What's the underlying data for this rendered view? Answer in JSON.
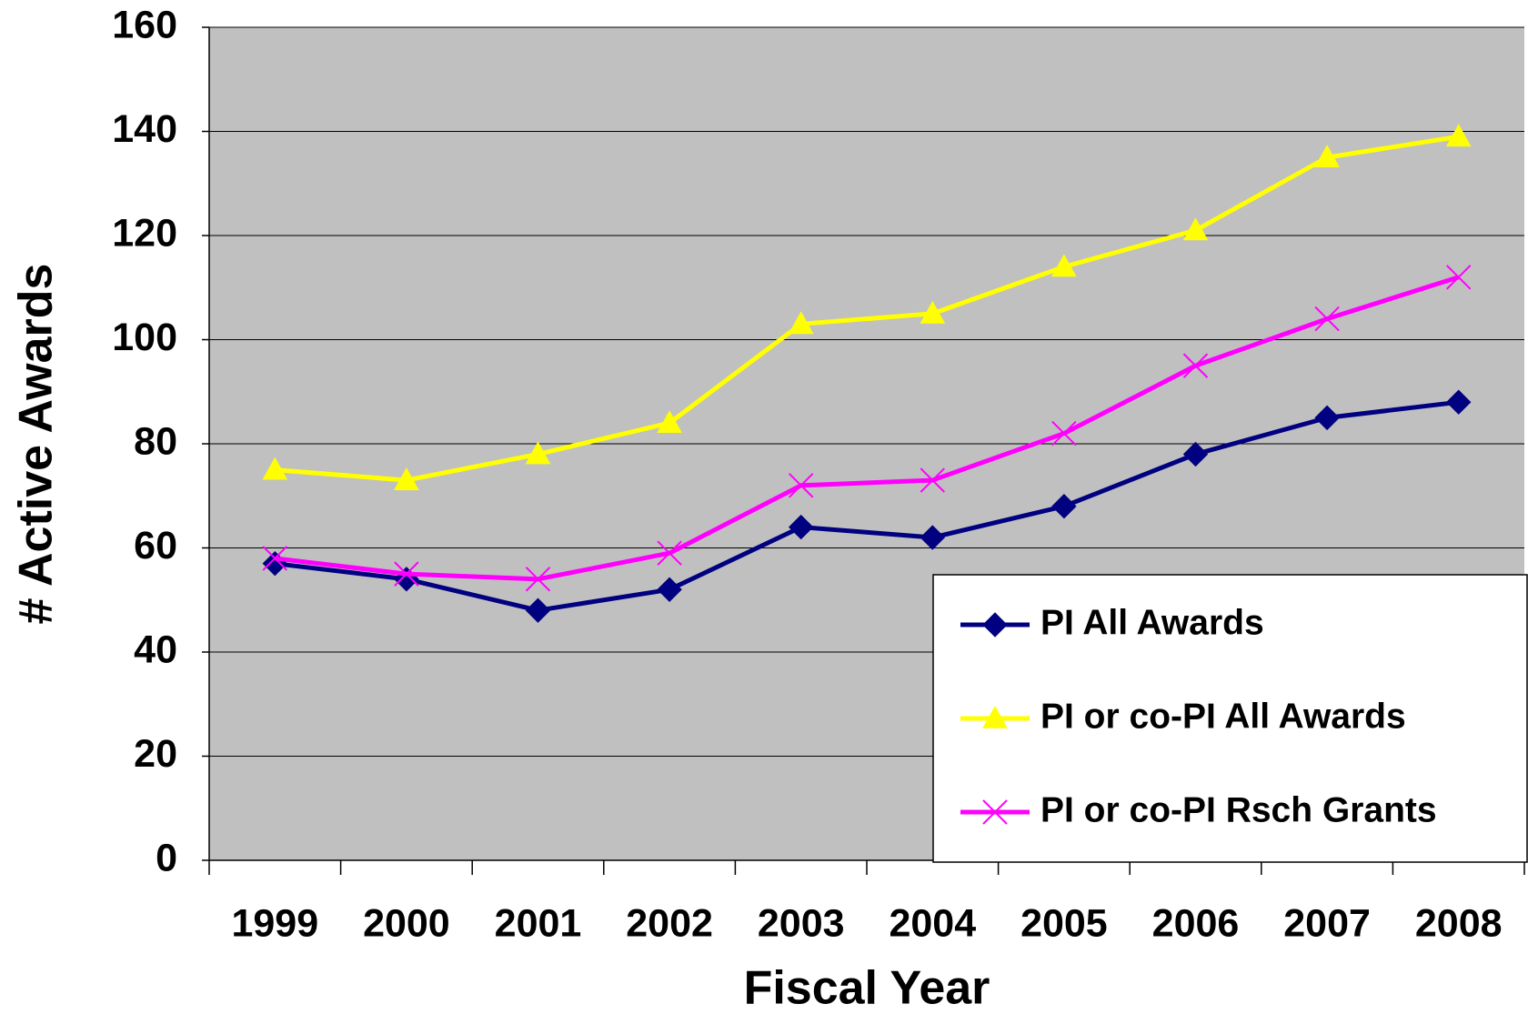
{
  "chart_data": {
    "type": "line",
    "x_label": "Fiscal Year",
    "y_label": "# Active Awards",
    "categories": [
      "1999",
      "2000",
      "2001",
      "2002",
      "2003",
      "2004",
      "2005",
      "2006",
      "2007",
      "2008"
    ],
    "series": [
      {
        "name": "PI All Awards",
        "color": "#000080",
        "marker": "diamond",
        "values": [
          57,
          54,
          48,
          52,
          64,
          62,
          68,
          78,
          85,
          88
        ]
      },
      {
        "name": "PI or co-PI All Awards",
        "color": "#ffff00",
        "marker": "triangle",
        "values": [
          75,
          73,
          78,
          84,
          103,
          105,
          114,
          121,
          135,
          139
        ]
      },
      {
        "name": "PI or co-PI Rsch Grants",
        "color": "#ff00ff",
        "marker": "x",
        "values": [
          58,
          55,
          54,
          59,
          72,
          73,
          82,
          95,
          104,
          112
        ]
      }
    ],
    "ylim": [
      0,
      160
    ],
    "yticks": [
      0,
      20,
      40,
      60,
      80,
      100,
      120,
      140,
      160
    ],
    "grid": true,
    "plot_background": "#c0c0c0",
    "legend": "lower right"
  }
}
